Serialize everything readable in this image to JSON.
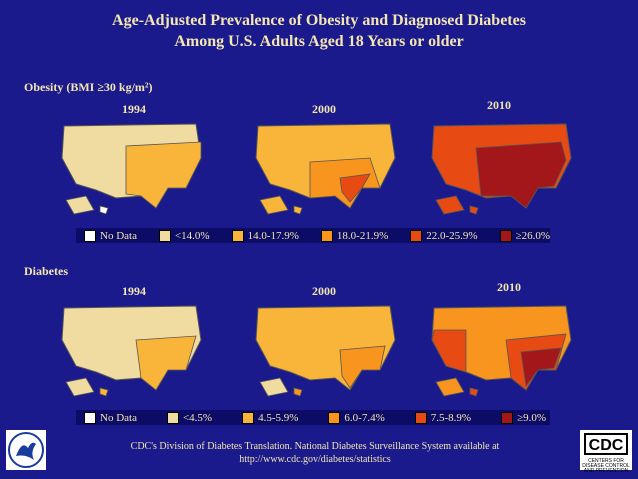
{
  "title": {
    "line1": "Age-Adjusted Prevalence of Obesity and Diagnosed Diabetes",
    "line2": "Among U.S. Adults Aged 18 Years or older"
  },
  "obesity": {
    "label": "Obesity (BMI ≥30 kg/m²)",
    "years": [
      "1994",
      "2000",
      "2010"
    ],
    "legend": [
      {
        "label": "No Data",
        "color": "#ffffff"
      },
      {
        "label": "<14.0%",
        "color": "#f0dca0"
      },
      {
        "label": "14.0-17.9%",
        "color": "#f9b53a"
      },
      {
        "label": "18.0-21.9%",
        "color": "#f7951e"
      },
      {
        "label": "22.0-25.9%",
        "color": "#e84a14"
      },
      {
        "label": "≥26.0%",
        "color": "#a3161a"
      }
    ]
  },
  "diabetes": {
    "label": "Diabetes",
    "years": [
      "1994",
      "2000",
      "2010"
    ],
    "legend": [
      {
        "label": "No Data",
        "color": "#ffffff"
      },
      {
        "label": "<4.5%",
        "color": "#f0dca0"
      },
      {
        "label": "4.5-5.9%",
        "color": "#f9b53a"
      },
      {
        "label": "6.0-7.4%",
        "color": "#f7951e"
      },
      {
        "label": "7.5-8.9%",
        "color": "#e84a14"
      },
      {
        "label": "≥9.0%",
        "color": "#a3161a"
      }
    ]
  },
  "footer": {
    "line1": "CDC's Division of Diabetes Translation. National Diabetes Surveillance System available at",
    "line2": "http://www.cdc.gov/diabetes/statistics"
  },
  "logo": {
    "text": "CDC",
    "tagline": "CENTERS FOR DISEASE CONTROL AND PREVENTION"
  }
}
